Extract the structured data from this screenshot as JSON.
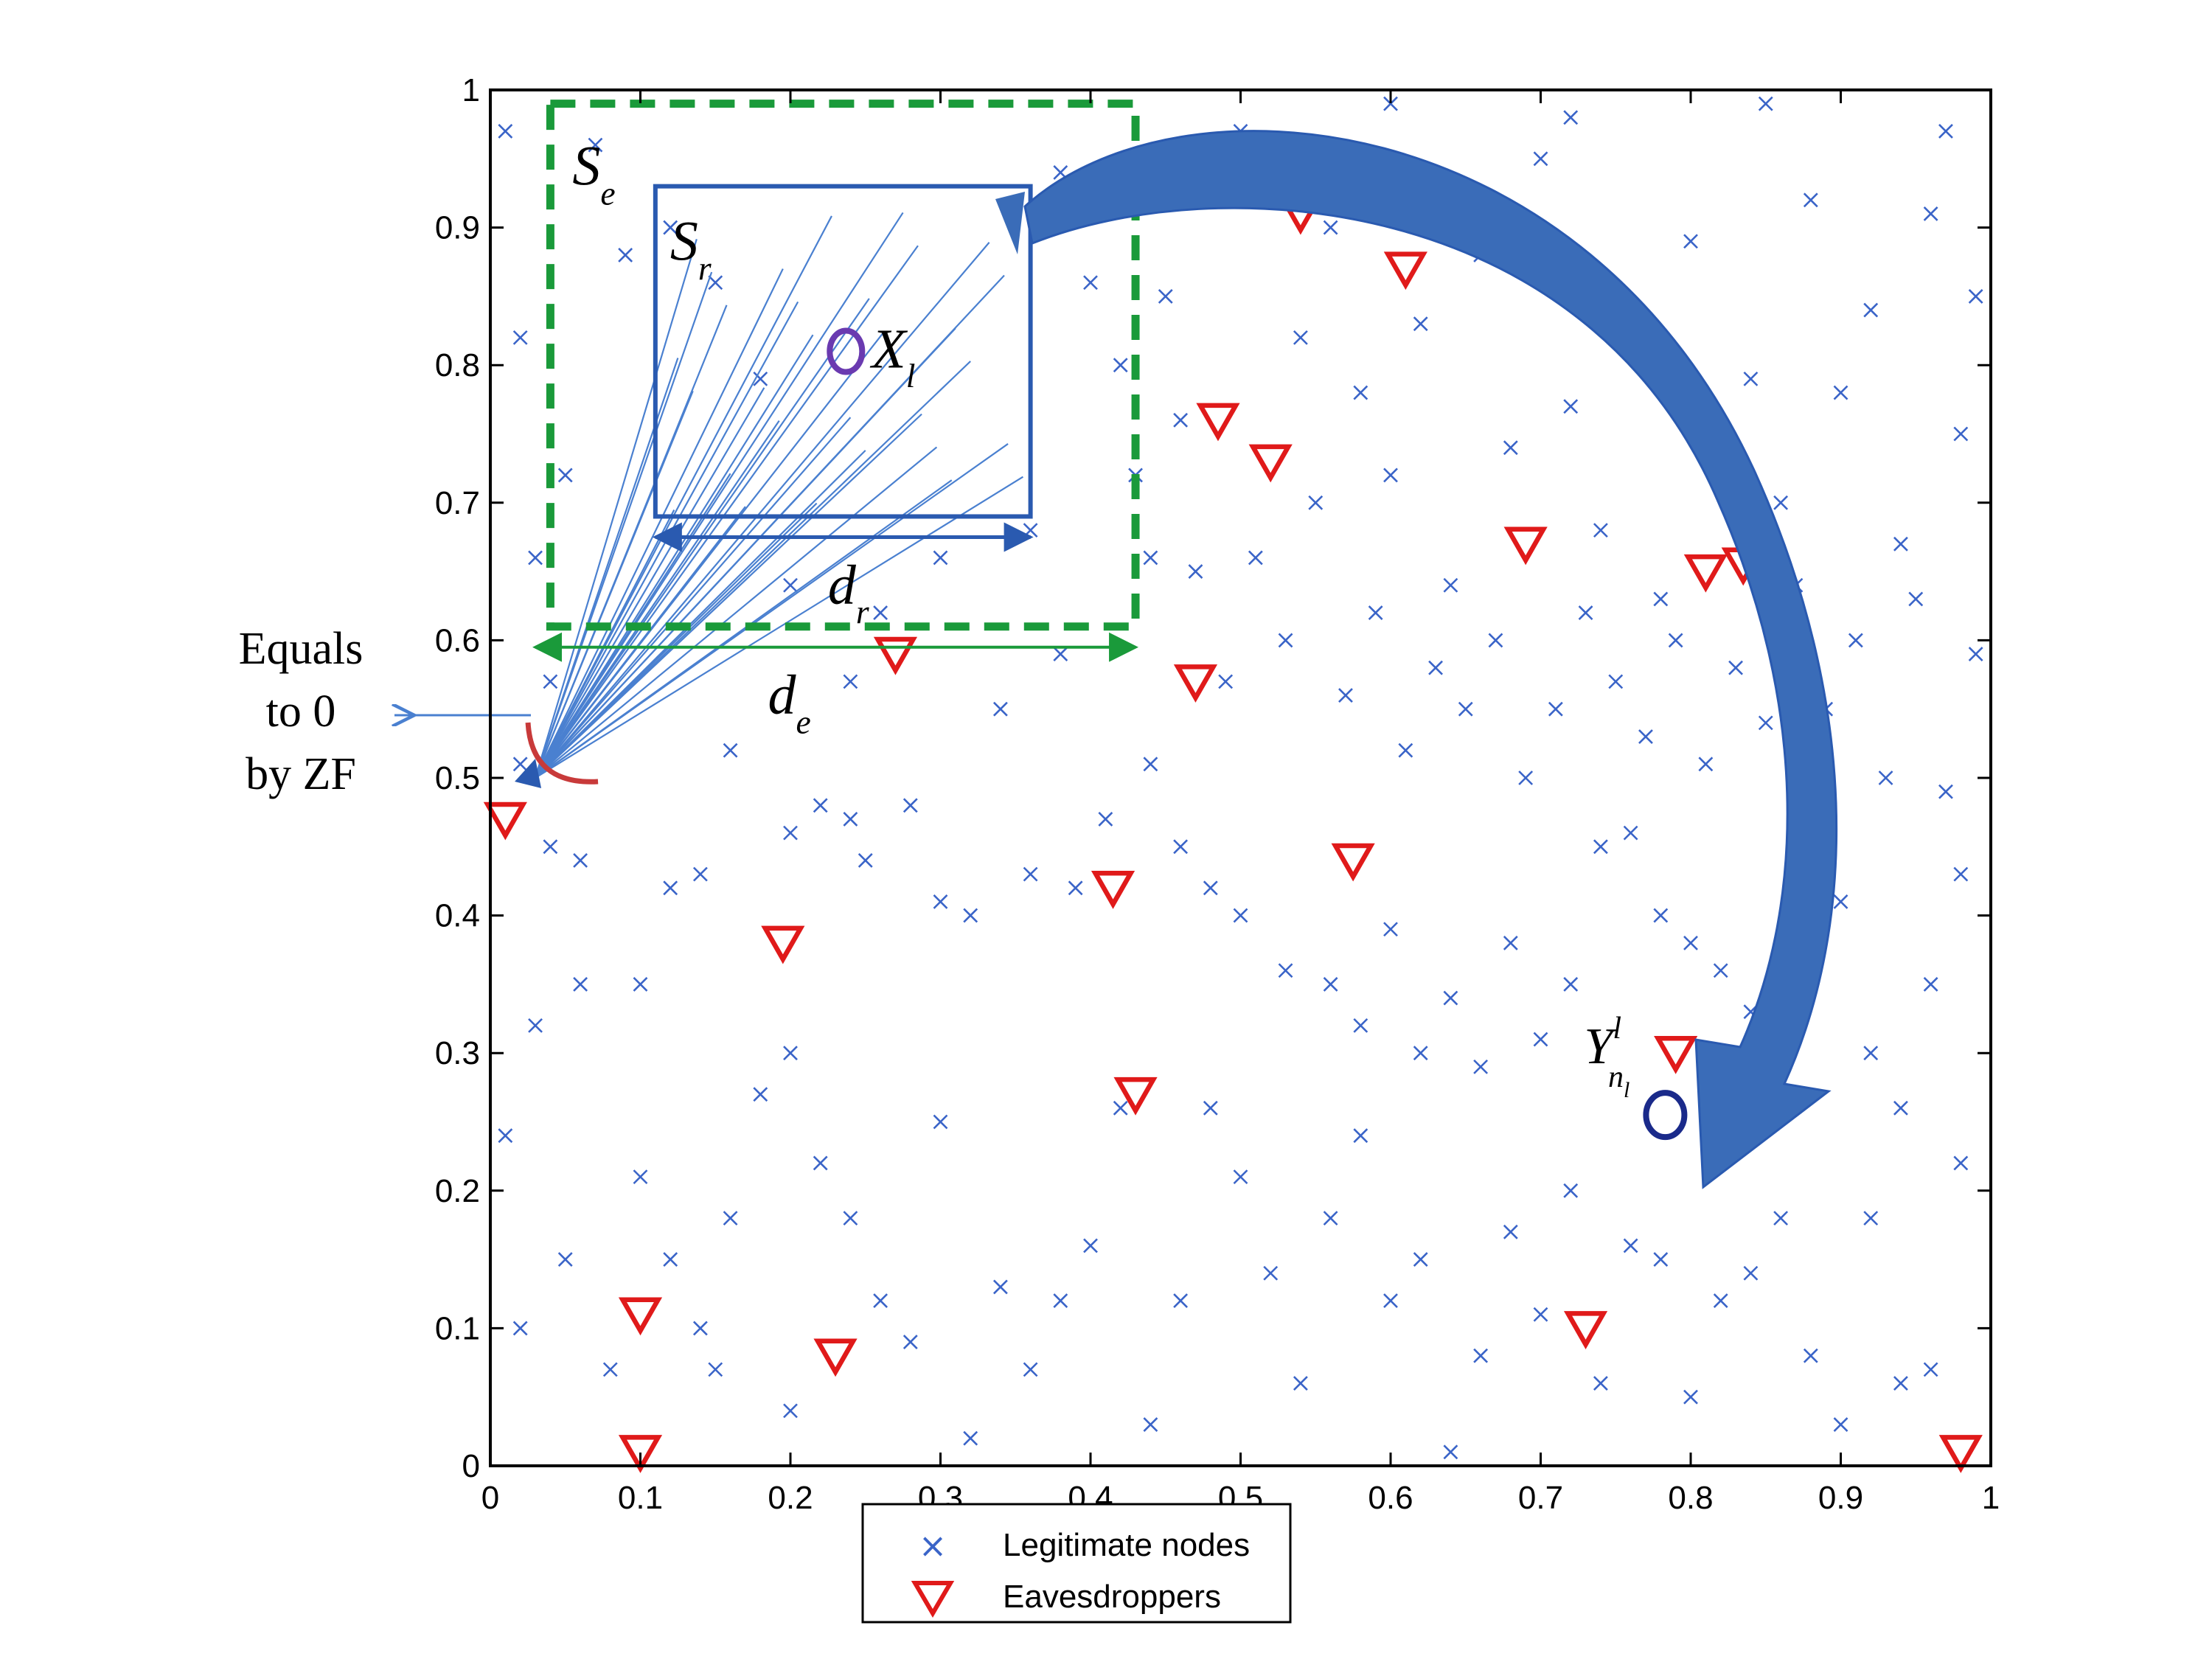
{
  "chart_data": {
    "type": "scatter",
    "title": "",
    "xlabel": "",
    "ylabel": "",
    "xlim": [
      0,
      1
    ],
    "ylim": [
      0,
      1
    ],
    "x_ticks": [
      "0",
      "0.1",
      "0.2",
      "0.3",
      "0.4",
      "0.5",
      "0.6",
      "0.7",
      "0.8",
      "0.9",
      "1"
    ],
    "y_ticks": [
      "0",
      "0.1",
      "0.2",
      "0.3",
      "0.4",
      "0.5",
      "0.6",
      "0.7",
      "0.8",
      "0.9",
      "1"
    ],
    "grid": false,
    "legend": {
      "placement": "bottom-center",
      "entries": [
        {
          "label": "Legitimate nodes",
          "marker": "x",
          "color": "#3a64c8"
        },
        {
          "label": "Eavesdroppers",
          "marker": "triangle-down",
          "color": "#e01a1a"
        }
      ]
    },
    "series": [
      {
        "name": "Legitimate nodes",
        "marker": "x",
        "color": "#3a64c8",
        "points": [
          [
            0.04,
            0.45
          ],
          [
            0.06,
            0.44
          ],
          [
            0.02,
            0.51
          ],
          [
            0.04,
            0.57
          ],
          [
            0.03,
            0.66
          ],
          [
            0.05,
            0.72
          ],
          [
            0.02,
            0.82
          ],
          [
            0.07,
            0.96
          ],
          [
            0.09,
            0.88
          ],
          [
            0.12,
            0.9
          ],
          [
            0.15,
            0.86
          ],
          [
            0.18,
            0.79
          ],
          [
            0.06,
            0.35
          ],
          [
            0.1,
            0.35
          ],
          [
            0.03,
            0.32
          ],
          [
            0.12,
            0.42
          ],
          [
            0.14,
            0.43
          ],
          [
            0.16,
            0.52
          ],
          [
            0.2,
            0.46
          ],
          [
            0.22,
            0.48
          ],
          [
            0.24,
            0.47
          ],
          [
            0.25,
            0.44
          ],
          [
            0.28,
            0.48
          ],
          [
            0.3,
            0.41
          ],
          [
            0.32,
            0.4
          ],
          [
            0.36,
            0.43
          ],
          [
            0.39,
            0.42
          ],
          [
            0.41,
            0.47
          ],
          [
            0.44,
            0.51
          ],
          [
            0.46,
            0.45
          ],
          [
            0.48,
            0.42
          ],
          [
            0.5,
            0.4
          ],
          [
            0.53,
            0.36
          ],
          [
            0.56,
            0.35
          ],
          [
            0.58,
            0.32
          ],
          [
            0.6,
            0.39
          ],
          [
            0.62,
            0.3
          ],
          [
            0.64,
            0.34
          ],
          [
            0.66,
            0.29
          ],
          [
            0.68,
            0.38
          ],
          [
            0.7,
            0.31
          ],
          [
            0.72,
            0.35
          ],
          [
            0.74,
            0.45
          ],
          [
            0.76,
            0.46
          ],
          [
            0.78,
            0.4
          ],
          [
            0.8,
            0.38
          ],
          [
            0.82,
            0.36
          ],
          [
            0.84,
            0.33
          ],
          [
            0.86,
            0.28
          ],
          [
            0.88,
            0.37
          ],
          [
            0.9,
            0.41
          ],
          [
            0.92,
            0.3
          ],
          [
            0.94,
            0.26
          ],
          [
            0.96,
            0.35
          ],
          [
            0.98,
            0.43
          ],
          [
            0.05,
            0.15
          ],
          [
            0.08,
            0.07
          ],
          [
            0.1,
            0.21
          ],
          [
            0.12,
            0.15
          ],
          [
            0.14,
            0.1
          ],
          [
            0.16,
            0.18
          ],
          [
            0.18,
            0.27
          ],
          [
            0.2,
            0.3
          ],
          [
            0.22,
            0.22
          ],
          [
            0.24,
            0.18
          ],
          [
            0.26,
            0.12
          ],
          [
            0.28,
            0.09
          ],
          [
            0.3,
            0.25
          ],
          [
            0.32,
            0.02
          ],
          [
            0.34,
            0.13
          ],
          [
            0.36,
            0.07
          ],
          [
            0.38,
            0.12
          ],
          [
            0.4,
            0.16
          ],
          [
            0.42,
            0.26
          ],
          [
            0.44,
            0.03
          ],
          [
            0.46,
            0.12
          ],
          [
            0.48,
            0.26
          ],
          [
            0.5,
            0.21
          ],
          [
            0.52,
            0.14
          ],
          [
            0.54,
            0.06
          ],
          [
            0.56,
            0.18
          ],
          [
            0.58,
            0.24
          ],
          [
            0.6,
            0.12
          ],
          [
            0.62,
            0.15
          ],
          [
            0.64,
            0.01
          ],
          [
            0.66,
            0.08
          ],
          [
            0.68,
            0.17
          ],
          [
            0.7,
            0.11
          ],
          [
            0.72,
            0.2
          ],
          [
            0.74,
            0.06
          ],
          [
            0.76,
            0.16
          ],
          [
            0.78,
            0.15
          ],
          [
            0.8,
            0.05
          ],
          [
            0.82,
            0.12
          ],
          [
            0.84,
            0.14
          ],
          [
            0.86,
            0.18
          ],
          [
            0.88,
            0.08
          ],
          [
            0.9,
            0.03
          ],
          [
            0.92,
            0.18
          ],
          [
            0.94,
            0.06
          ],
          [
            0.96,
            0.07
          ],
          [
            0.98,
            0.22
          ],
          [
            0.5,
            0.97
          ],
          [
            0.54,
            0.82
          ],
          [
            0.56,
            0.9
          ],
          [
            0.58,
            0.78
          ],
          [
            0.6,
            0.72
          ],
          [
            0.62,
            0.83
          ],
          [
            0.64,
            0.64
          ],
          [
            0.66,
            0.88
          ],
          [
            0.68,
            0.74
          ],
          [
            0.7,
            0.95
          ],
          [
            0.72,
            0.77
          ],
          [
            0.74,
            0.68
          ],
          [
            0.76,
            0.82
          ],
          [
            0.78,
            0.63
          ],
          [
            0.8,
            0.89
          ],
          [
            0.82,
            0.74
          ],
          [
            0.84,
            0.79
          ],
          [
            0.86,
            0.7
          ],
          [
            0.88,
            0.92
          ],
          [
            0.9,
            0.78
          ],
          [
            0.92,
            0.84
          ],
          [
            0.94,
            0.67
          ],
          [
            0.96,
            0.91
          ],
          [
            0.98,
            0.75
          ],
          [
            0.46,
            0.76
          ],
          [
            0.47,
            0.65
          ],
          [
            0.49,
            0.57
          ],
          [
            0.51,
            0.66
          ],
          [
            0.53,
            0.6
          ],
          [
            0.55,
            0.7
          ],
          [
            0.57,
            0.56
          ],
          [
            0.59,
            0.62
          ],
          [
            0.61,
            0.52
          ],
          [
            0.63,
            0.58
          ],
          [
            0.65,
            0.55
          ],
          [
            0.67,
            0.6
          ],
          [
            0.69,
            0.5
          ],
          [
            0.71,
            0.55
          ],
          [
            0.73,
            0.62
          ],
          [
            0.75,
            0.57
          ],
          [
            0.77,
            0.53
          ],
          [
            0.79,
            0.6
          ],
          [
            0.81,
            0.51
          ],
          [
            0.83,
            0.58
          ],
          [
            0.85,
            0.54
          ],
          [
            0.87,
            0.64
          ],
          [
            0.89,
            0.55
          ],
          [
            0.91,
            0.6
          ],
          [
            0.93,
            0.5
          ],
          [
            0.95,
            0.63
          ],
          [
            0.97,
            0.49
          ],
          [
            0.99,
            0.59
          ],
          [
            0.45,
            0.85
          ],
          [
            0.44,
            0.66
          ],
          [
            0.43,
            0.72
          ],
          [
            0.42,
            0.8
          ],
          [
            0.4,
            0.86
          ],
          [
            0.38,
            0.94
          ],
          [
            0.36,
            0.68
          ],
          [
            0.3,
            0.66
          ],
          [
            0.26,
            0.62
          ],
          [
            0.2,
            0.64
          ],
          [
            0.24,
            0.57
          ],
          [
            0.34,
            0.55
          ],
          [
            0.38,
            0.59
          ],
          [
            0.01,
            0.24
          ],
          [
            0.02,
            0.1
          ],
          [
            0.15,
            0.07
          ],
          [
            0.2,
            0.04
          ],
          [
            0.01,
            0.97
          ],
          [
            0.97,
            0.97
          ],
          [
            0.72,
            0.98
          ],
          [
            0.6,
            0.99
          ],
          [
            0.85,
            0.99
          ],
          [
            0.99,
            0.85
          ]
        ]
      },
      {
        "name": "Eavesdroppers",
        "marker": "triangle-down",
        "color": "#e01a1a",
        "points": [
          [
            0.01,
            0.47
          ],
          [
            0.27,
            0.59
          ],
          [
            0.47,
            0.57
          ],
          [
            0.54,
            0.91
          ],
          [
            0.61,
            0.87
          ],
          [
            0.485,
            0.76
          ],
          [
            0.52,
            0.73
          ],
          [
            0.69,
            0.67
          ],
          [
            0.81,
            0.65
          ],
          [
            0.835,
            0.655
          ],
          [
            0.195,
            0.38
          ],
          [
            0.415,
            0.42
          ],
          [
            0.575,
            0.44
          ],
          [
            0.43,
            0.27
          ],
          [
            0.79,
            0.3
          ],
          [
            0.1,
            0.11
          ],
          [
            0.23,
            0.08
          ],
          [
            0.1,
            0.01
          ],
          [
            0.73,
            0.1
          ],
          [
            0.98,
            0.01
          ]
        ]
      }
    ],
    "annotations": {
      "outer_box": {
        "label_main": "S",
        "label_sub": "e",
        "x": [
          0.04,
          0.43
        ],
        "y": [
          0.61,
          0.99
        ],
        "color": "#1a9a3a"
      },
      "inner_box": {
        "label_main": "S",
        "label_sub": "r",
        "x": [
          0.11,
          0.36
        ],
        "y": [
          0.69,
          0.93
        ],
        "color": "#2a5ab0"
      },
      "d_r": {
        "label_main": "d",
        "label_sub": "r",
        "x": [
          0.11,
          0.36
        ],
        "y": 0.675
      },
      "d_e": {
        "label_main": "d",
        "label_sub": "e",
        "x": [
          0.03,
          0.43
        ],
        "y": 0.595
      },
      "X_l": {
        "label_main": "X",
        "label_sub": "l",
        "x": 0.237,
        "y": 0.81
      },
      "Y_nl": {
        "label_main": "Y",
        "label_sup": "l",
        "label_sub": "n",
        "label_subsub": "l",
        "x": 0.783,
        "y": 0.255
      },
      "source": {
        "x": 0.03,
        "y": 0.5
      },
      "zf_note": [
        "Equals",
        "to 0",
        "by ZF"
      ]
    }
  }
}
